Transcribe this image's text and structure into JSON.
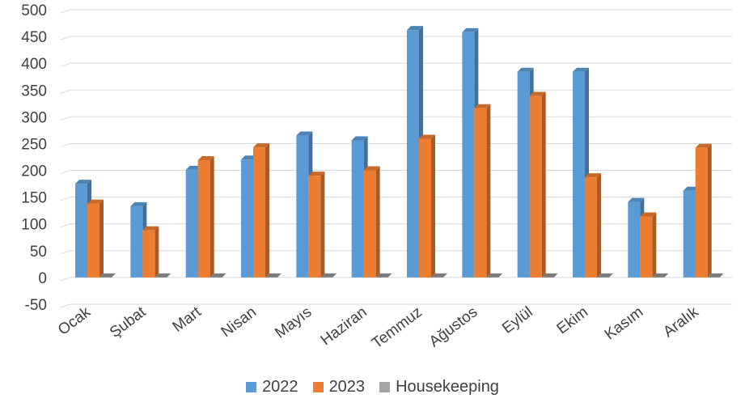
{
  "chart_data": {
    "type": "bar",
    "style": "3d-clustered-column",
    "categories": [
      "Ocak",
      "Şubat",
      "Mart",
      "Nisan",
      "Mayıs",
      "Haziran",
      "Temmuz",
      "Ağustos",
      "Eylül",
      "Ekim",
      "Kasım",
      "Aralık"
    ],
    "series": [
      {
        "name": "2022",
        "color": "#5B9BD5",
        "values": [
          175,
          133,
          201,
          220,
          265,
          256,
          462,
          458,
          384,
          384,
          141,
          162
        ]
      },
      {
        "name": "2023",
        "color": "#ED7D31",
        "values": [
          138,
          88,
          219,
          243,
          190,
          200,
          259,
          316,
          339,
          187,
          114,
          242
        ]
      },
      {
        "name": "Housekeeping",
        "color": "#A5A5A5",
        "values": [
          0,
          0,
          0,
          0,
          0,
          0,
          0,
          0,
          0,
          0,
          0,
          0
        ]
      }
    ],
    "ylim": [
      -50,
      500
    ],
    "yticks": [
      -50,
      0,
      50,
      100,
      150,
      200,
      250,
      300,
      350,
      400,
      450,
      500
    ],
    "grid": true,
    "legend_position": "bottom"
  }
}
